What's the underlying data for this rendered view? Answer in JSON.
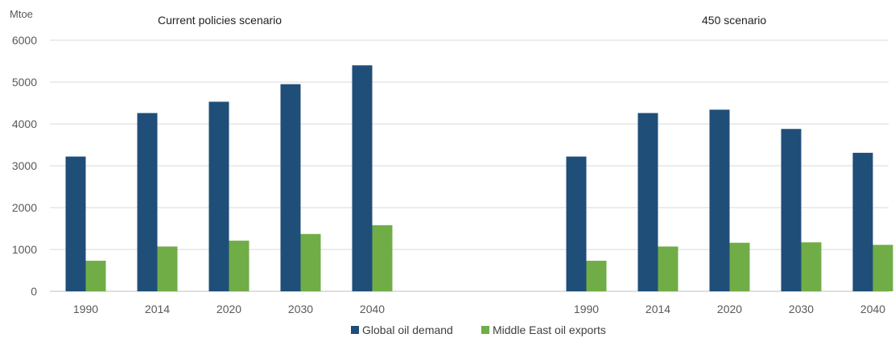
{
  "chart_data": {
    "type": "bar",
    "unit_label": "Mtoe",
    "ylim": [
      0,
      6000
    ],
    "yticks": [
      0,
      1000,
      2000,
      3000,
      4000,
      5000,
      6000
    ],
    "grid": true,
    "legend_position": "bottom-center",
    "series_names": [
      "Global oil demand",
      "Middle East oil exports"
    ],
    "colors": {
      "Global oil demand": "#1f4e79",
      "Middle East oil exports": "#70ad47"
    },
    "panels": [
      {
        "title": "Current policies scenario",
        "categories": [
          "1990",
          "2014",
          "2020",
          "2030",
          "2040"
        ],
        "series": [
          {
            "name": "Global oil demand",
            "values": [
              3220,
              4260,
              4530,
              4950,
              5400
            ]
          },
          {
            "name": "Middle East oil exports",
            "values": [
              730,
              1070,
              1210,
              1370,
              1580
            ]
          }
        ]
      },
      {
        "title": "450 scenario",
        "categories": [
          "1990",
          "2014",
          "2020",
          "2030",
          "2040"
        ],
        "series": [
          {
            "name": "Global oil demand",
            "values": [
              3220,
              4260,
              4340,
              3880,
              3310
            ]
          },
          {
            "name": "Middle East oil exports",
            "values": [
              730,
              1070,
              1160,
              1170,
              1110
            ]
          }
        ]
      }
    ]
  }
}
